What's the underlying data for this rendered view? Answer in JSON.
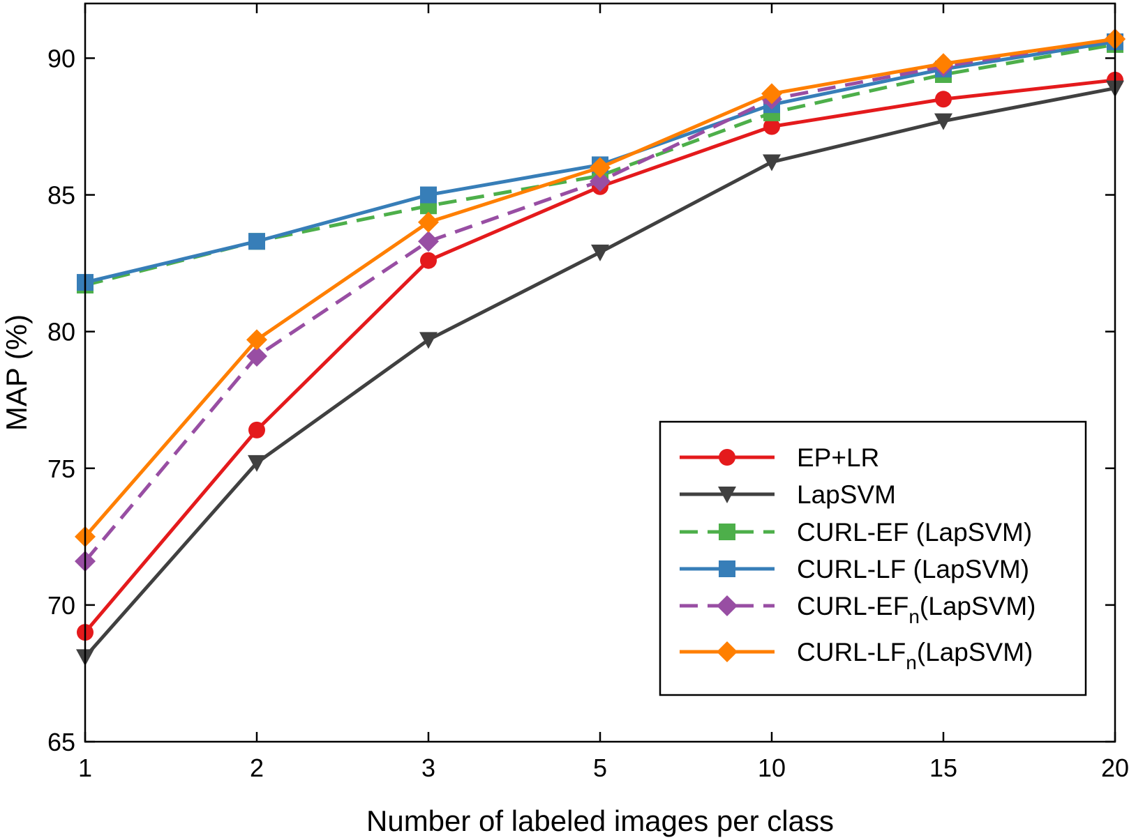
{
  "chart_data": {
    "type": "line",
    "title": "",
    "xlabel": "Number of labeled images per class",
    "ylabel": "MAP (%)",
    "categories": [
      "1",
      "2",
      "3",
      "5",
      "10",
      "15",
      "20"
    ],
    "ylim": [
      65,
      92
    ],
    "yticks": [
      65,
      70,
      75,
      80,
      85,
      90
    ],
    "grid": false,
    "legend_position": "lower-right",
    "series": [
      {
        "name": "EP+LR",
        "name_sub": "",
        "name_suffix": "",
        "color": "#e41a1c",
        "dash": "solid",
        "marker": "circle",
        "values": [
          69.0,
          76.4,
          82.6,
          85.3,
          87.5,
          88.5,
          89.2
        ]
      },
      {
        "name": "LapSVM",
        "name_sub": "",
        "name_suffix": "",
        "color": "#404040",
        "dash": "solid",
        "marker": "triangle-down",
        "values": [
          68.1,
          75.2,
          79.7,
          82.9,
          86.2,
          87.7,
          88.9
        ]
      },
      {
        "name": "CURL-EF (LapSVM)",
        "name_sub": "",
        "name_suffix": "",
        "color": "#4daf4a",
        "dash": "dashed",
        "marker": "square",
        "values": [
          81.7,
          83.3,
          84.6,
          85.7,
          88.0,
          89.4,
          90.5
        ]
      },
      {
        "name": "CURL-LF (LapSVM)",
        "name_sub": "",
        "name_suffix": "",
        "color": "#377eb8",
        "dash": "solid",
        "marker": "square",
        "values": [
          81.8,
          83.3,
          85.0,
          86.1,
          88.3,
          89.6,
          90.6
        ]
      },
      {
        "name": "CURL-EF",
        "name_sub": "n",
        "name_suffix": "(LapSVM)",
        "color": "#984ea3",
        "dash": "dashed",
        "marker": "diamond",
        "values": [
          71.6,
          79.1,
          83.3,
          85.5,
          88.5,
          89.7,
          90.7
        ]
      },
      {
        "name": "CURL-LF",
        "name_sub": "n",
        "name_suffix": "(LapSVM)",
        "color": "#ff7f00",
        "dash": "solid",
        "marker": "diamond",
        "values": [
          72.5,
          79.7,
          84.0,
          86.0,
          88.7,
          89.8,
          90.7
        ]
      }
    ]
  }
}
